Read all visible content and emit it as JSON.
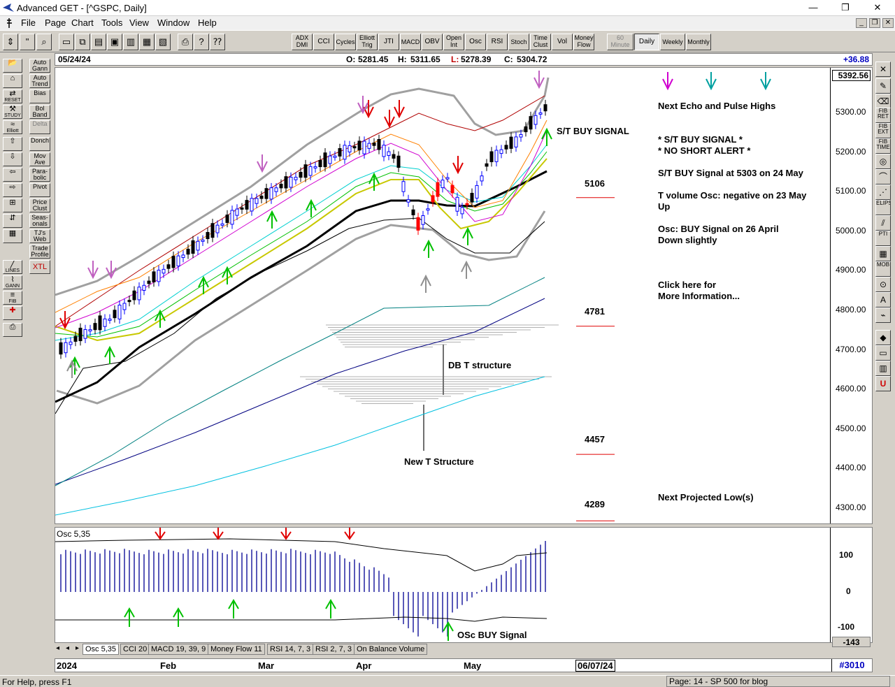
{
  "window": {
    "title": "Advanced GET - [^GSPC, Daily]",
    "min": "—",
    "restore": "❐",
    "close": "✕"
  },
  "menu": [
    "File",
    "Page",
    "Chart",
    "Tools",
    "View",
    "Window",
    "Help"
  ],
  "toolbar": {
    "indicators": [
      "ADX DMI",
      "CCI",
      "Cycles",
      "Elliott Trig",
      "JTI",
      "MACD",
      "OBV",
      "Open Int",
      "Osc",
      "RSI",
      "Stoch",
      "Time Clust",
      "Vol",
      "Money Flow"
    ],
    "intervals": [
      "60 Minute",
      "Daily",
      "Weekly",
      "Monthly"
    ],
    "active_interval": "Daily"
  },
  "left_tools": {
    "icons_col1": [
      "open-folder",
      "chart-template",
      "reset",
      "study",
      "elliott",
      "arrow-up",
      "arrow-down",
      "arrow-left",
      "arrow-right",
      "ruler",
      "scale",
      "grid",
      "lines",
      "gann",
      "fib",
      "cross",
      "print"
    ],
    "labels_col1": [
      "",
      "",
      "RESET",
      "STUDY",
      "Elliott",
      "",
      "",
      "",
      "",
      "",
      "",
      "",
      "LINES",
      "GANN",
      "FIB",
      "",
      ""
    ],
    "labels_col2": [
      "Auto Gann",
      "Auto Trend",
      "Bias",
      "Bol Band",
      "Delta",
      "Donch",
      "Mov Ave",
      "Para-bolic",
      "Pivot",
      "Price Clust",
      "Seas-onals",
      "TJ's Web",
      "Trade Profile",
      "XTL"
    ]
  },
  "right_tools": [
    "FIB RET",
    "FIB EXT",
    "FIB TIME",
    "ELIPS",
    "PTI",
    "MOB",
    "A",
    "U"
  ],
  "info": {
    "date": "05/24/24",
    "open_label": "O:",
    "open": "5281.45",
    "high_label": "H:",
    "high": "5311.65",
    "low_label": "L:",
    "low": "5278.39",
    "close_label": "C:",
    "close": "5304.72",
    "change": "+36.88"
  },
  "price_axis": {
    "current": "5392.56",
    "labels": [
      "5300.00",
      "5200.00",
      "5100.00",
      "5000.00",
      "4900.00",
      "4800.00",
      "4700.00",
      "4600.00",
      "4500.00",
      "4400.00",
      "4300.00"
    ]
  },
  "chart_levels": [
    "5106",
    "4781",
    "4457",
    "4289"
  ],
  "annotations": {
    "st_buy": "S/T BUY SIGNAL",
    "db_t": "DB T structure",
    "new_t": "New T Structure",
    "panel_lines": [
      "Next Echo and Pulse Highs",
      "* S/T BUY SIGNAL *",
      "* NO SHORT ALERT *",
      "S/T BUY Signal at 5303 on 24 May",
      "T volume Osc: negative on 23 May",
      "Up",
      "Osc: BUY Signal on 26 April",
      "Down slightly",
      "Click here for",
      "More Information...",
      "Next Projected Low(s)"
    ]
  },
  "osc": {
    "label": "Osc 5,35",
    "axis": [
      "100",
      "0",
      "-100"
    ],
    "current": "-143",
    "signal_text": "OSc BUY Signal"
  },
  "tabs": [
    "Osc 5,35",
    "CCI 20",
    "MACD 19, 39, 9",
    "Money Flow 11",
    "RSI 14, 7, 3",
    "RSI 2, 7, 3",
    "On Balance Volume"
  ],
  "dates": {
    "labels": [
      "2024",
      "Feb",
      "Mar",
      "Apr",
      "May"
    ],
    "cursor": "06/07/24",
    "bar_count": "#3010"
  },
  "status": {
    "help": "For Help, press F1",
    "page": "Page: 14 - SP 500 for blog"
  },
  "colors": {
    "up_candle": "#0000ff",
    "down_candle": "#000000",
    "red_candle": "#ff0000",
    "buy_arrow": "#00c000",
    "sell_arrow": "#e00000",
    "level_line": "#ff0000"
  }
}
